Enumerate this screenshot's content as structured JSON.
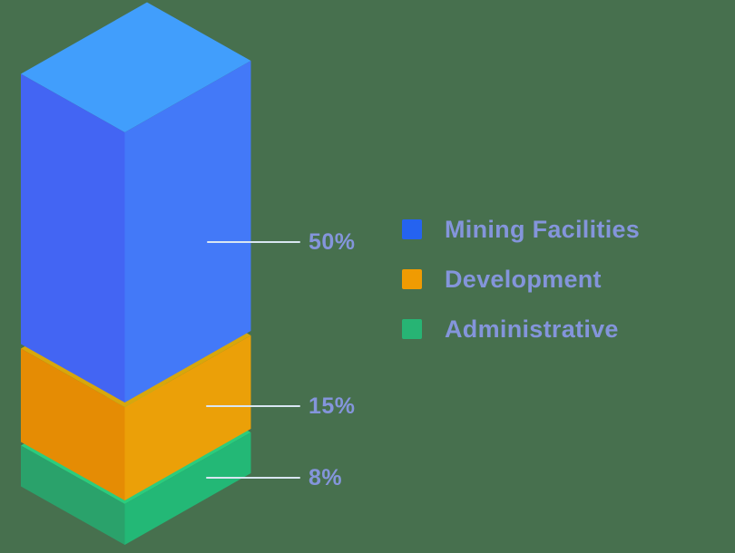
{
  "background_color": "#47704E",
  "text_color": "#8495DB",
  "callout_line_color": "#D9E6F2",
  "chart_data": {
    "type": "bar",
    "variant": "3d-isometric-stacked-column",
    "title": "",
    "categories": [
      "Mining Facilities",
      "Development",
      "Administrative"
    ],
    "values": [
      50,
      15,
      8
    ],
    "unit": "%",
    "value_labels": [
      "50%",
      "15%",
      "8%"
    ],
    "legend_position": "right",
    "grid": false,
    "axes_visible": false,
    "colors": [
      {
        "legend": "#2563F0",
        "top": "#419EFC",
        "left": "#4365F3",
        "right": "#4379F8"
      },
      {
        "legend": "#F09B02",
        "top": "#D8A70B",
        "left": "#E58C04",
        "right": "#EBA008"
      },
      {
        "legend": "#27B474",
        "top": "#2BCC7D",
        "left": "#2AA26B",
        "right": "#23B876"
      }
    ]
  }
}
